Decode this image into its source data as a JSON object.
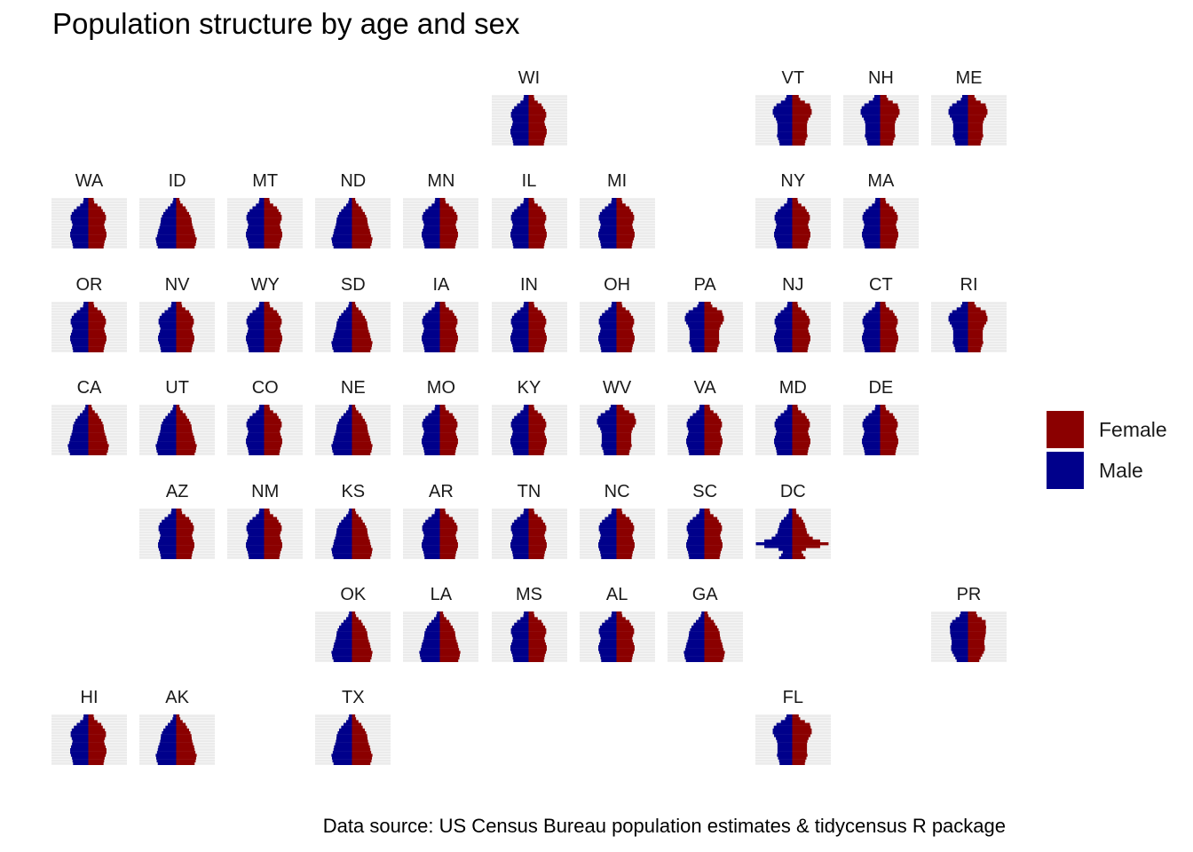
{
  "chart_data": {
    "type": "bar",
    "title": "Population structure by age and sex",
    "caption": "Data source: US Census Bureau population estimates & tidycensus R package",
    "legend": {
      "placement": "right",
      "entries": [
        {
          "name": "Female",
          "color": "#8b0000"
        },
        {
          "name": "Male",
          "color": "#00008b"
        }
      ]
    },
    "grid": true,
    "panels": [
      {
        "state": "WI",
        "row": 0,
        "col": 5
      },
      {
        "state": "VT",
        "row": 0,
        "col": 8
      },
      {
        "state": "NH",
        "row": 0,
        "col": 9
      },
      {
        "state": "ME",
        "row": 0,
        "col": 10
      },
      {
        "state": "WA",
        "row": 1,
        "col": 0
      },
      {
        "state": "ID",
        "row": 1,
        "col": 1
      },
      {
        "state": "MT",
        "row": 1,
        "col": 2
      },
      {
        "state": "ND",
        "row": 1,
        "col": 3
      },
      {
        "state": "MN",
        "row": 1,
        "col": 4
      },
      {
        "state": "IL",
        "row": 1,
        "col": 5
      },
      {
        "state": "MI",
        "row": 1,
        "col": 6
      },
      {
        "state": "NY",
        "row": 1,
        "col": 8
      },
      {
        "state": "MA",
        "row": 1,
        "col": 9
      },
      {
        "state": "OR",
        "row": 2,
        "col": 0
      },
      {
        "state": "NV",
        "row": 2,
        "col": 1
      },
      {
        "state": "WY",
        "row": 2,
        "col": 2
      },
      {
        "state": "SD",
        "row": 2,
        "col": 3
      },
      {
        "state": "IA",
        "row": 2,
        "col": 4
      },
      {
        "state": "IN",
        "row": 2,
        "col": 5
      },
      {
        "state": "OH",
        "row": 2,
        "col": 6
      },
      {
        "state": "PA",
        "row": 2,
        "col": 7
      },
      {
        "state": "NJ",
        "row": 2,
        "col": 8
      },
      {
        "state": "CT",
        "row": 2,
        "col": 9
      },
      {
        "state": "RI",
        "row": 2,
        "col": 10
      },
      {
        "state": "CA",
        "row": 3,
        "col": 0
      },
      {
        "state": "UT",
        "row": 3,
        "col": 1
      },
      {
        "state": "CO",
        "row": 3,
        "col": 2
      },
      {
        "state": "NE",
        "row": 3,
        "col": 3
      },
      {
        "state": "MO",
        "row": 3,
        "col": 4
      },
      {
        "state": "KY",
        "row": 3,
        "col": 5
      },
      {
        "state": "WV",
        "row": 3,
        "col": 6
      },
      {
        "state": "VA",
        "row": 3,
        "col": 7
      },
      {
        "state": "MD",
        "row": 3,
        "col": 8
      },
      {
        "state": "DE",
        "row": 3,
        "col": 9
      },
      {
        "state": "AZ",
        "row": 4,
        "col": 1
      },
      {
        "state": "NM",
        "row": 4,
        "col": 2
      },
      {
        "state": "KS",
        "row": 4,
        "col": 3
      },
      {
        "state": "AR",
        "row": 4,
        "col": 4
      },
      {
        "state": "TN",
        "row": 4,
        "col": 5
      },
      {
        "state": "NC",
        "row": 4,
        "col": 6
      },
      {
        "state": "SC",
        "row": 4,
        "col": 7
      },
      {
        "state": "DC",
        "row": 4,
        "col": 8
      },
      {
        "state": "OK",
        "row": 5,
        "col": 3
      },
      {
        "state": "LA",
        "row": 5,
        "col": 4
      },
      {
        "state": "MS",
        "row": 5,
        "col": 5
      },
      {
        "state": "AL",
        "row": 5,
        "col": 6
      },
      {
        "state": "GA",
        "row": 5,
        "col": 7
      },
      {
        "state": "PR",
        "row": 5,
        "col": 10
      },
      {
        "state": "HI",
        "row": 6,
        "col": 0
      },
      {
        "state": "AK",
        "row": 6,
        "col": 1
      },
      {
        "state": "TX",
        "row": 6,
        "col": 3
      },
      {
        "state": "FL",
        "row": 6,
        "col": 8
      }
    ],
    "age_groups_count": 18,
    "profiles": {
      "default": [
        5.8,
        6.0,
        6.2,
        6.6,
        6.9,
        6.9,
        6.6,
        6.2,
        6.0,
        6.3,
        6.7,
        6.7,
        6.3,
        5.5,
        4.4,
        3.1,
        2.0,
        1.8
      ],
      "young": [
        7.0,
        7.4,
        7.6,
        7.8,
        7.3,
        7.0,
        6.8,
        6.4,
        6.1,
        5.9,
        5.8,
        5.4,
        4.9,
        4.1,
        3.2,
        2.2,
        1.4,
        1.1
      ],
      "old": [
        4.8,
        5.0,
        5.4,
        5.8,
        5.6,
        5.6,
        5.6,
        5.6,
        5.8,
        6.2,
        6.9,
        7.4,
        7.4,
        7.0,
        6.0,
        4.3,
        2.7,
        2.2
      ],
      "dc": [
        5.0,
        4.2,
        3.6,
        5.2,
        10.6,
        13.8,
        10.6,
        7.8,
        6.4,
        5.6,
        5.4,
        5.0,
        4.8,
        4.2,
        3.2,
        2.2,
        1.4,
        1.3
      ],
      "pr": [
        4.3,
        4.8,
        5.4,
        6.0,
        6.4,
        6.4,
        6.2,
        6.2,
        6.4,
        6.6,
        6.8,
        6.8,
        6.9,
        6.7,
        6.0,
        4.7,
        3.2,
        2.8
      ]
    },
    "state_profile": {
      "UT": "young",
      "TX": "young",
      "AK": "young",
      "ID": "young",
      "ND": "young",
      "NE": "young",
      "KS": "young",
      "OK": "young",
      "LA": "young",
      "GA": "young",
      "SD": "young",
      "CA": "young",
      "NV": "default",
      "AZ": "default",
      "NM": "default",
      "CO": "default",
      "WA": "default",
      "ME": "old",
      "VT": "old",
      "NH": "old",
      "FL": "old",
      "WV": "old",
      "RI": "old",
      "PA": "old",
      "DC": "dc",
      "PR": "pr"
    }
  }
}
